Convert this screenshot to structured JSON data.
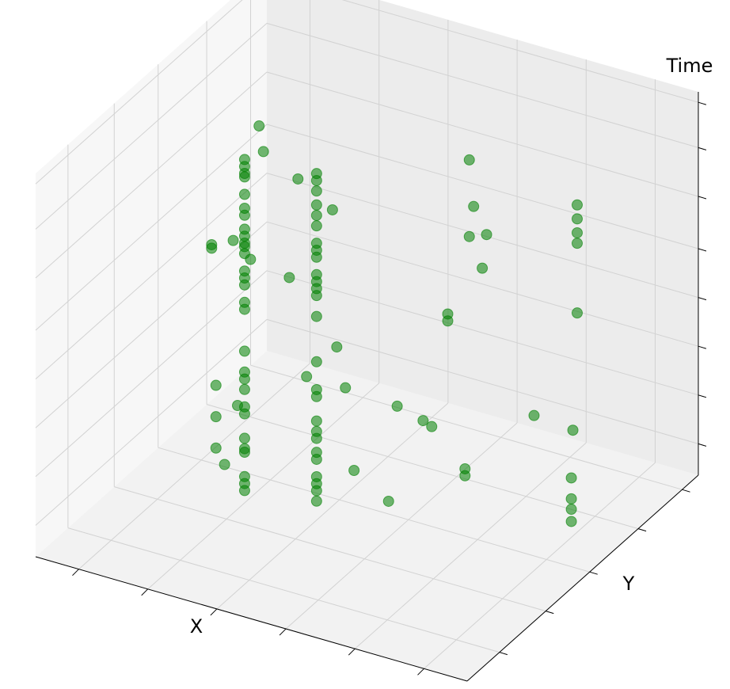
{
  "chart_data": {
    "type": "scatter3d",
    "xlabel": "X",
    "ylabel": "Y",
    "zlabel": "Time",
    "color": "#008000",
    "grid": true,
    "xlim": [
      0,
      1
    ],
    "ylim": [
      0,
      1
    ],
    "zlim": [
      0,
      1.1
    ],
    "xticks": [
      0.1,
      0.26,
      0.42,
      0.58,
      0.74,
      0.9
    ],
    "yticks": [
      0.14,
      0.34,
      0.53,
      0.74,
      0.93
    ],
    "zticks": [
      0.09,
      0.23,
      0.37,
      0.51,
      0.65,
      0.8,
      0.94,
      1.07
    ],
    "x": [
      0.27,
      0.27,
      0.27,
      0.27,
      0.27,
      0.27,
      0.27,
      0.27,
      0.27,
      0.27,
      0.27,
      0.27,
      0.27,
      0.27,
      0.27,
      0.27,
      0.27,
      0.27,
      0.27,
      0.27,
      0.27,
      0.27,
      0.27,
      0.27,
      0.27,
      0.27,
      0.27,
      0.27,
      0.27,
      0.41,
      0.41,
      0.41,
      0.41,
      0.41,
      0.41,
      0.41,
      0.41,
      0.41,
      0.41,
      0.41,
      0.41,
      0.41,
      0.41,
      0.41,
      0.41,
      0.41,
      0.41,
      0.41,
      0.41,
      0.41,
      0.41,
      0.41,
      0.41,
      0.41,
      0.41,
      0.25,
      0.26,
      0.14,
      0.14,
      0.19,
      0.23,
      0.32,
      0.34,
      0.42,
      0.43,
      0.36,
      0.45,
      0.15,
      0.15,
      0.15,
      0.17,
      0.2,
      0.47,
      0.55,
      0.57,
      0.63,
      0.65,
      0.63,
      0.64,
      0.63,
      0.67,
      0.66,
      0.58,
      0.58,
      0.78,
      0.87,
      0.62,
      0.62,
      0.88,
      0.88,
      0.88,
      0.88,
      0.88,
      0.92,
      0.92,
      0.92,
      0.92
    ],
    "y": [
      0.4,
      0.4,
      0.4,
      0.4,
      0.4,
      0.4,
      0.4,
      0.4,
      0.4,
      0.4,
      0.4,
      0.4,
      0.4,
      0.4,
      0.4,
      0.4,
      0.4,
      0.4,
      0.4,
      0.4,
      0.4,
      0.4,
      0.4,
      0.4,
      0.4,
      0.4,
      0.4,
      0.4,
      0.4,
      0.45,
      0.45,
      0.45,
      0.45,
      0.45,
      0.45,
      0.45,
      0.45,
      0.45,
      0.45,
      0.45,
      0.45,
      0.45,
      0.45,
      0.45,
      0.45,
      0.45,
      0.45,
      0.45,
      0.45,
      0.45,
      0.45,
      0.45,
      0.45,
      0.45,
      0.45,
      0.5,
      0.5,
      0.5,
      0.5,
      0.5,
      0.5,
      0.5,
      0.5,
      0.5,
      0.5,
      0.5,
      0.5,
      0.5,
      0.5,
      0.5,
      0.5,
      0.5,
      0.5,
      0.5,
      0.5,
      0.5,
      0.5,
      0.7,
      0.7,
      0.7,
      0.7,
      0.7,
      0.7,
      0.7,
      0.7,
      0.7,
      0.7,
      0.7,
      0.7,
      0.7,
      0.7,
      0.7,
      0.7,
      0.6,
      0.6,
      0.6,
      0.6
    ],
    "z": [
      1.0,
      0.98,
      0.96,
      0.95,
      0.9,
      0.86,
      0.84,
      0.8,
      0.78,
      0.76,
      0.75,
      0.73,
      0.68,
      0.66,
      0.64,
      0.59,
      0.57,
      0.45,
      0.39,
      0.37,
      0.34,
      0.29,
      0.27,
      0.2,
      0.17,
      0.16,
      0.09,
      0.07,
      0.05,
      0.98,
      0.96,
      0.93,
      0.89,
      0.86,
      0.83,
      0.78,
      0.76,
      0.74,
      0.69,
      0.67,
      0.65,
      0.63,
      0.57,
      0.44,
      0.36,
      0.34,
      0.27,
      0.24,
      0.22,
      0.18,
      0.16,
      0.11,
      0.09,
      0.07,
      0.04,
      1.03,
      0.96,
      0.65,
      0.64,
      0.68,
      0.64,
      0.62,
      0.91,
      0.85,
      0.46,
      0.35,
      0.35,
      0.25,
      0.16,
      0.07,
      0.03,
      0.21,
      0.12,
      0.06,
      0.34,
      0.32,
      0.31,
      0.95,
      0.82,
      0.73,
      0.75,
      0.65,
      0.49,
      0.47,
      0.27,
      0.26,
      0.06,
      0.04,
      0.91,
      0.87,
      0.83,
      0.8,
      0.6,
      0.2,
      0.14,
      0.11,
      0.075
    ]
  }
}
